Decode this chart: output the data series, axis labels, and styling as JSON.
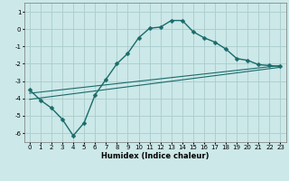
{
  "title": "",
  "xlabel": "Humidex (Indice chaleur)",
  "bg_color": "#cce8e8",
  "grid_color": "#aacccc",
  "line_color": "#1a6b6b",
  "xlim": [
    -0.5,
    23.5
  ],
  "ylim": [
    -6.5,
    1.5
  ],
  "xticks": [
    0,
    1,
    2,
    3,
    4,
    5,
    6,
    7,
    8,
    9,
    10,
    11,
    12,
    13,
    14,
    15,
    16,
    17,
    18,
    19,
    20,
    21,
    22,
    23
  ],
  "yticks": [
    -6,
    -5,
    -4,
    -3,
    -2,
    -1,
    0,
    1
  ],
  "main_x": [
    0,
    1,
    2,
    3,
    4,
    5,
    6,
    7,
    8,
    9,
    10,
    11,
    12,
    13,
    14,
    15,
    16,
    17,
    18,
    19,
    20,
    21,
    22,
    23
  ],
  "main_y": [
    -3.5,
    -4.1,
    -4.55,
    -5.2,
    -6.15,
    -5.4,
    -3.8,
    -2.9,
    -2.0,
    -1.4,
    -0.5,
    0.05,
    0.12,
    0.5,
    0.5,
    -0.15,
    -0.5,
    -0.75,
    -1.15,
    -1.7,
    -1.8,
    -2.05,
    -2.1,
    -2.15
  ],
  "line1_x": [
    0,
    23
  ],
  "line1_y": [
    -3.7,
    -2.1
  ],
  "line2_x": [
    0,
    23
  ],
  "line2_y": [
    -4.05,
    -2.2
  ],
  "linewidth_main": 1.0,
  "linewidth_straight": 0.8,
  "markersize": 2.5,
  "xlabel_fontsize": 6.0,
  "tick_fontsize": 5.0
}
